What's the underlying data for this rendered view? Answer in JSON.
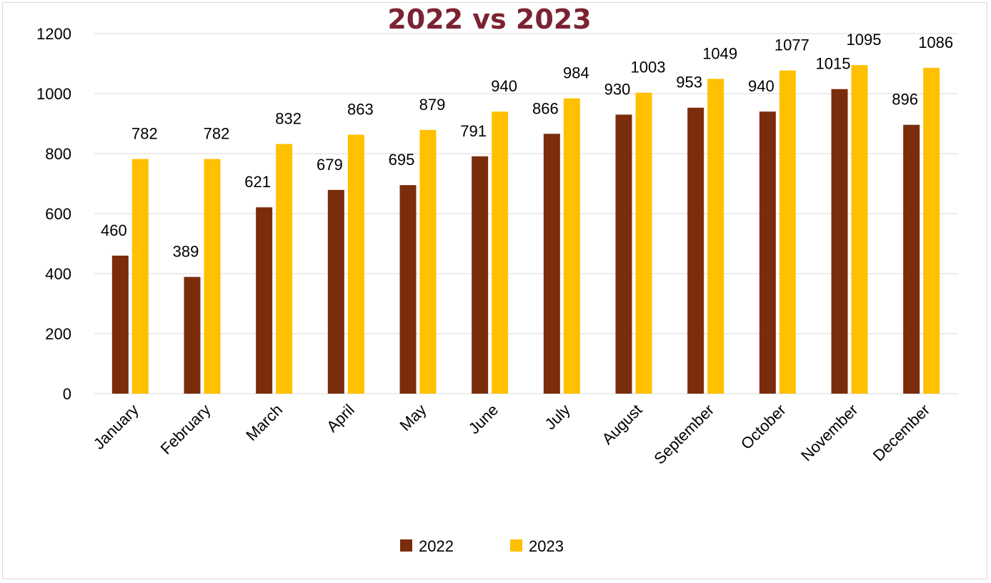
{
  "chart_data": {
    "type": "bar",
    "title": "2022 vs 2023",
    "xlabel": "",
    "ylabel": "",
    "ylim": [
      0,
      1200
    ],
    "yticks": [
      0,
      200,
      400,
      600,
      800,
      1000,
      1200
    ],
    "grid": true,
    "legend_position": "bottom",
    "categories": [
      "January",
      "February",
      "March",
      "April",
      "May",
      "June",
      "July",
      "August",
      "September",
      "October",
      "November",
      "December"
    ],
    "series": [
      {
        "name": "2022",
        "color": "#7b2c0c",
        "values": [
          460,
          389,
          621,
          679,
          695,
          791,
          866,
          930,
          953,
          940,
          1015,
          896
        ]
      },
      {
        "name": "2023",
        "color": "#ffc000",
        "values": [
          782,
          782,
          832,
          863,
          879,
          940,
          984,
          1003,
          1049,
          1077,
          1095,
          1086
        ]
      }
    ]
  }
}
